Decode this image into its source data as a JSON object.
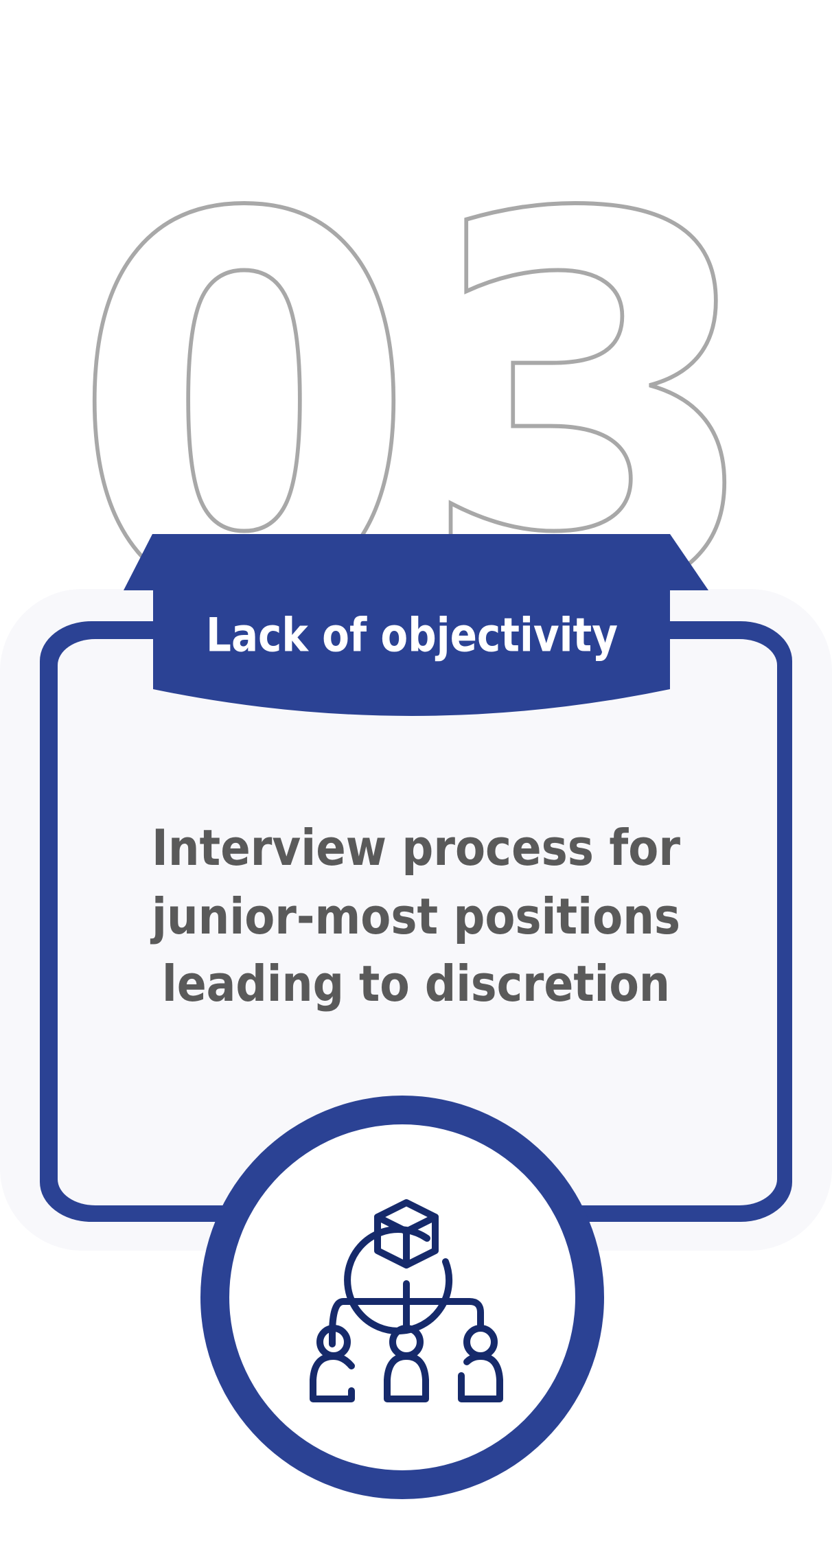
{
  "card": {
    "number": "03",
    "title": "Lack of objectivity",
    "description_lines": [
      "Interview process for",
      "junior-most positions",
      "leading to discretion"
    ],
    "icon": "organization-hierarchy-icon"
  },
  "colors": {
    "primary": "#2b4294",
    "icon_stroke": "#162a6b",
    "number_outline": "#a8a8a8",
    "card_fill": "#f8f8fb",
    "body_text": "#5a5a5a",
    "title_text": "#ffffff",
    "background": "#ffffff"
  }
}
